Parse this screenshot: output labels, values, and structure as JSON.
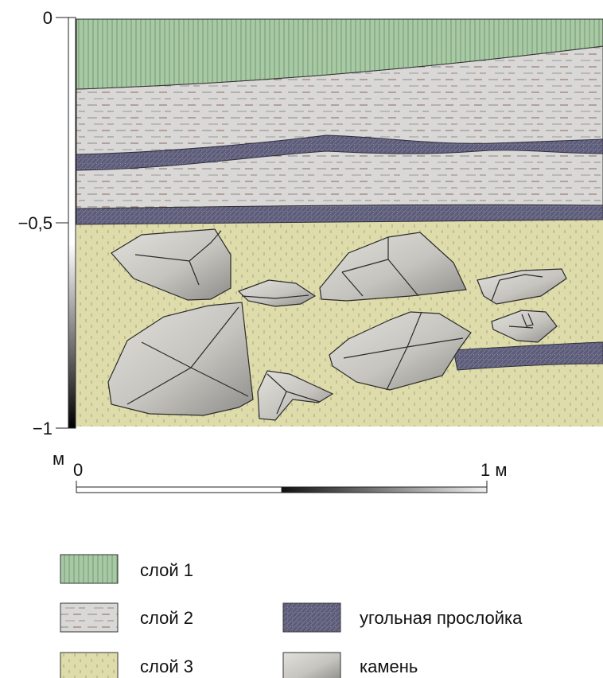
{
  "vertical_axis": {
    "tick_labels": [
      "0",
      "−0,5",
      "−1"
    ],
    "unit": "м"
  },
  "scale_bar": {
    "start_label": "0",
    "end_label": "1 м"
  },
  "legend": {
    "layer1": "слой 1",
    "layer2": "слой 2",
    "layer3": "слой 3",
    "charcoal": "угольная прослойка",
    "stone": "камень"
  },
  "colors": {
    "layer1": "#a9c9a6",
    "layer2": "#d9d8d6",
    "layer3": "#dedcab",
    "charcoal": "#5c5b78",
    "stone": "#c9c7c2"
  }
}
